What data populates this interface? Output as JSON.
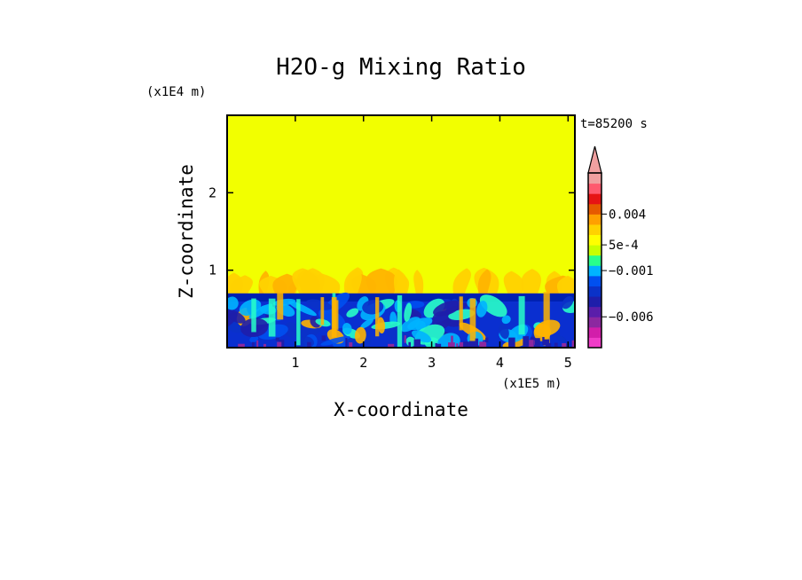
{
  "chart_data": {
    "type": "heatmap",
    "title": "H2O-g Mixing Ratio",
    "xlabel": "X-coordinate",
    "ylabel": "Z-coordinate",
    "x_unit": "(x1E5 m)",
    "y_unit": "(x1E4 m)",
    "time_label": "t=85200 s",
    "xlim": [
      0,
      5.1
    ],
    "ylim": [
      0,
      3
    ],
    "x_ticks": [
      {
        "value": 1,
        "label": "1"
      },
      {
        "value": 2,
        "label": "2"
      },
      {
        "value": 3,
        "label": "3"
      },
      {
        "value": 4,
        "label": "4"
      },
      {
        "value": 5,
        "label": "5"
      }
    ],
    "y_ticks": [
      {
        "value": 1,
        "label": "1"
      },
      {
        "value": 2,
        "label": "2"
      }
    ],
    "background_level_color": "#f2ff00",
    "boundary_layer_top": 0.7,
    "plume_top": 1.05,
    "colorbar": {
      "colors": [
        "#f03cc8",
        "#d21eaa",
        "#8c28a0",
        "#5a1eaa",
        "#1e1eaa",
        "#0a32c8",
        "#0050f0",
        "#00b4ff",
        "#28ff8c",
        "#c8ff00",
        "#ffff00",
        "#ffd200",
        "#ffa000",
        "#e65a00",
        "#e61414",
        "#ff5a6e",
        "#f0a0a0"
      ],
      "labels": [
        {
          "text": "0.004",
          "level": 13
        },
        {
          "text": "5e-4",
          "level": 10
        },
        {
          "text": "−0.001",
          "level": 7.5
        },
        {
          "text": "−0.006",
          "level": 3
        }
      ],
      "extend_top": true
    }
  }
}
